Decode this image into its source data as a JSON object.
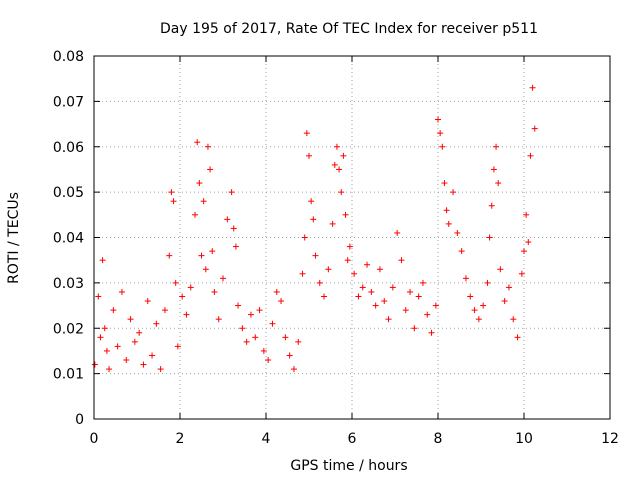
{
  "chart_data": {
    "type": "scatter",
    "title": "Day 195 of 2017, Rate Of TEC Index for receiver p511",
    "xlabel": "GPS time / hours",
    "ylabel": "ROTI / TECUs",
    "xlim": [
      0,
      12
    ],
    "ylim": [
      0,
      0.08
    ],
    "x_ticks": [
      0,
      2,
      4,
      6,
      8,
      10,
      12
    ],
    "x_tick_labels": [
      "0",
      "2",
      "4",
      "6",
      "8",
      "10",
      "12"
    ],
    "y_ticks": [
      0,
      0.01,
      0.02,
      0.03,
      0.04,
      0.05,
      0.06,
      0.07,
      0.08
    ],
    "y_tick_labels": [
      "0",
      "0.01",
      "0.02",
      "0.03",
      "0.04",
      "0.05",
      "0.06",
      "0.07",
      "0.08"
    ],
    "grid": true,
    "marker": "+",
    "marker_color": "#ff0000",
    "series": [
      {
        "name": "ROTI",
        "x": [
          0.02,
          0.1,
          0.15,
          0.2,
          0.25,
          0.3,
          0.35,
          0.45,
          0.55,
          0.65,
          0.75,
          0.85,
          0.95,
          1.05,
          1.15,
          1.25,
          1.35,
          1.45,
          1.55,
          1.65,
          1.75,
          1.8,
          1.85,
          1.9,
          1.95,
          2.05,
          2.15,
          2.25,
          2.35,
          2.4,
          2.45,
          2.5,
          2.55,
          2.6,
          2.65,
          2.7,
          2.75,
          2.8,
          2.9,
          3.0,
          3.1,
          3.2,
          3.25,
          3.3,
          3.35,
          3.45,
          3.55,
          3.65,
          3.75,
          3.85,
          3.95,
          4.05,
          4.15,
          4.25,
          4.35,
          4.45,
          4.55,
          4.65,
          4.75,
          4.85,
          4.9,
          4.95,
          5.0,
          5.05,
          5.1,
          5.15,
          5.25,
          5.35,
          5.45,
          5.55,
          5.6,
          5.65,
          5.7,
          5.75,
          5.8,
          5.85,
          5.9,
          5.95,
          6.05,
          6.15,
          6.25,
          6.35,
          6.45,
          6.55,
          6.65,
          6.75,
          6.85,
          6.95,
          7.05,
          7.15,
          7.25,
          7.35,
          7.45,
          7.55,
          7.65,
          7.75,
          7.85,
          7.95,
          8.0,
          8.05,
          8.1,
          8.15,
          8.2,
          8.25,
          8.35,
          8.45,
          8.55,
          8.65,
          8.75,
          8.85,
          8.95,
          9.05,
          9.15,
          9.2,
          9.25,
          9.3,
          9.35,
          9.4,
          9.45,
          9.55,
          9.65,
          9.75,
          9.85,
          9.95,
          10.0,
          10.05,
          10.1,
          10.15,
          10.2,
          10.25
        ],
        "y": [
          0.012,
          0.027,
          0.018,
          0.035,
          0.02,
          0.015,
          0.011,
          0.024,
          0.016,
          0.028,
          0.013,
          0.022,
          0.017,
          0.019,
          0.012,
          0.026,
          0.014,
          0.021,
          0.011,
          0.024,
          0.036,
          0.05,
          0.048,
          0.03,
          0.016,
          0.027,
          0.023,
          0.029,
          0.045,
          0.061,
          0.052,
          0.036,
          0.048,
          0.033,
          0.06,
          0.055,
          0.037,
          0.028,
          0.022,
          0.031,
          0.044,
          0.05,
          0.042,
          0.038,
          0.025,
          0.02,
          0.017,
          0.023,
          0.018,
          0.024,
          0.015,
          0.013,
          0.021,
          0.028,
          0.026,
          0.018,
          0.014,
          0.011,
          0.017,
          0.032,
          0.04,
          0.063,
          0.058,
          0.048,
          0.044,
          0.036,
          0.03,
          0.027,
          0.033,
          0.043,
          0.056,
          0.06,
          0.055,
          0.05,
          0.058,
          0.045,
          0.035,
          0.038,
          0.032,
          0.027,
          0.029,
          0.034,
          0.028,
          0.025,
          0.033,
          0.026,
          0.022,
          0.029,
          0.041,
          0.035,
          0.024,
          0.028,
          0.02,
          0.027,
          0.03,
          0.023,
          0.019,
          0.025,
          0.066,
          0.063,
          0.06,
          0.052,
          0.046,
          0.043,
          0.05,
          0.041,
          0.037,
          0.031,
          0.027,
          0.024,
          0.022,
          0.025,
          0.03,
          0.04,
          0.047,
          0.055,
          0.06,
          0.052,
          0.033,
          0.026,
          0.029,
          0.022,
          0.018,
          0.032,
          0.037,
          0.045,
          0.039,
          0.058,
          0.073,
          0.064
        ]
      }
    ]
  }
}
